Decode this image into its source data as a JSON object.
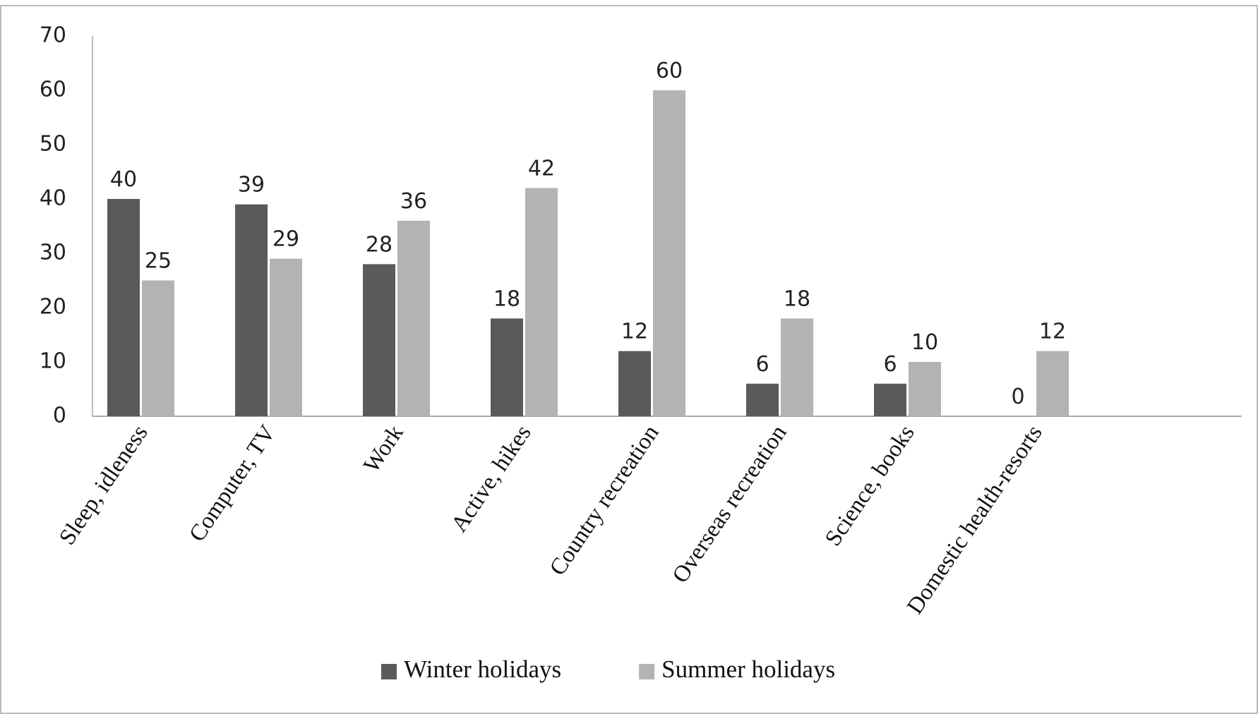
{
  "chart_data": {
    "type": "bar",
    "categories": [
      "Sleep, idleness",
      "Computer, TV",
      "Work",
      "Active, hikes",
      "Country recreation",
      "Overseas recreation",
      "Science, books",
      "Domestic health-resorts"
    ],
    "series": [
      {
        "name": "Winter holidays",
        "color": "#5a5a5a",
        "values": [
          40,
          39,
          28,
          18,
          12,
          6,
          6,
          0
        ]
      },
      {
        "name": "Summer holidays",
        "color": "#b3b3b3",
        "values": [
          25,
          29,
          36,
          42,
          60,
          18,
          10,
          12
        ]
      }
    ],
    "ylim": [
      0,
      70
    ],
    "yticks": [
      0,
      10,
      20,
      30,
      40,
      50,
      60,
      70
    ],
    "grid": false,
    "legend": "bottom"
  }
}
